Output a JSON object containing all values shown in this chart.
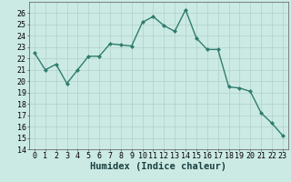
{
  "x": [
    0,
    1,
    2,
    3,
    4,
    5,
    6,
    7,
    8,
    9,
    10,
    11,
    12,
    13,
    14,
    15,
    16,
    17,
    18,
    19,
    20,
    21,
    22,
    23
  ],
  "y": [
    22.5,
    21.0,
    21.5,
    19.8,
    21.0,
    22.2,
    22.2,
    23.3,
    23.2,
    23.1,
    25.2,
    25.7,
    24.9,
    24.4,
    26.3,
    23.8,
    22.8,
    22.8,
    19.5,
    19.4,
    19.1,
    17.2,
    16.3,
    15.2
  ],
  "line_color": "#2e7d6e",
  "bg_color": "#cceae4",
  "grid_color": "#b0d0c8",
  "xlabel": "Humidex (Indice chaleur)",
  "ylim": [
    14,
    27
  ],
  "xlim": [
    -0.5,
    23.5
  ],
  "yticks": [
    14,
    15,
    16,
    17,
    18,
    19,
    20,
    21,
    22,
    23,
    24,
    25,
    26
  ],
  "xticks": [
    0,
    1,
    2,
    3,
    4,
    5,
    6,
    7,
    8,
    9,
    10,
    11,
    12,
    13,
    14,
    15,
    16,
    17,
    18,
    19,
    20,
    21,
    22,
    23
  ],
  "marker": "D",
  "marker_size": 2.0,
  "line_width": 1.0,
  "tick_font_size": 6.0,
  "xlabel_font_size": 7.5
}
